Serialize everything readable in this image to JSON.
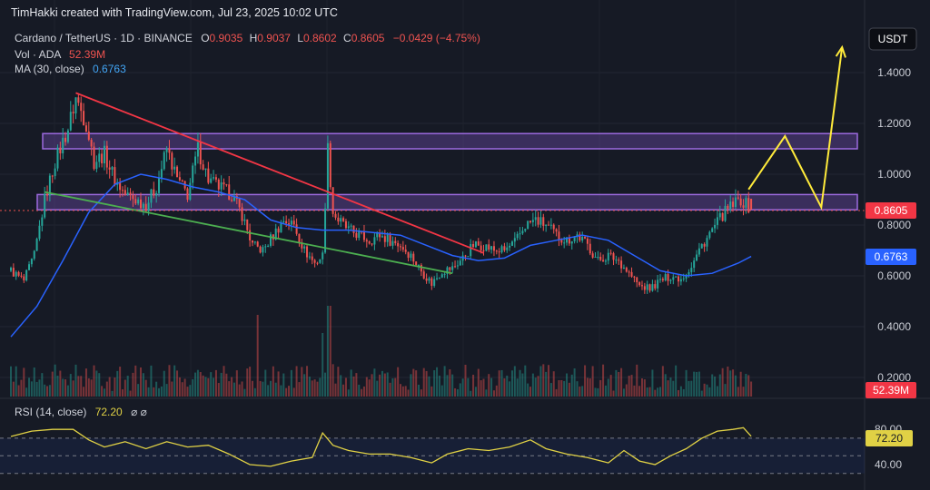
{
  "header": {
    "credit": "TimHakki created with TradingView.com, Jul 23, 2025 10:02 UTC"
  },
  "legend": {
    "symbol": "Cardano / TetherUS · 1D · BINANCE",
    "ohlc": [
      {
        "key": "O",
        "value": "0.9035"
      },
      {
        "key": "H",
        "value": "0.9037"
      },
      {
        "key": "L",
        "value": "0.8602"
      },
      {
        "key": "C",
        "value": "0.8605"
      }
    ],
    "change": "−0.0429 (−4.75%)",
    "vol_label": "Vol · ADA",
    "vol_value": "52.39M",
    "ma_label": "MA (30, close)",
    "ma_value": "0.6763",
    "rsi_label": "RSI (14, close)",
    "rsi_value": "72.20",
    "rsi_icons": "⌀ ⌀"
  },
  "currency_button": "USDT",
  "badges": {
    "price": "0.8605",
    "ma": "0.6763",
    "volume": "52.39M",
    "rsi": "72.20"
  },
  "colors": {
    "background": "#161a25",
    "up": "#26a69a",
    "down": "#ef5350",
    "ma": "#2962ff",
    "resistance_fill": "#7e57c2",
    "trend_upper": "#f23645",
    "trend_lower": "#4caf50",
    "projection": "#ffeb3b",
    "rsi_line": "#e0d145"
  },
  "chart_data": [
    {
      "type": "candlestick",
      "symbol": "Cardano / TetherUS",
      "interval": "1D",
      "exchange": "BINANCE",
      "y_ticks": [
        0.2,
        0.4,
        0.6,
        0.8,
        1.0,
        1.2,
        1.4
      ],
      "y_tick_labels": [
        "0.2000",
        "0.4000",
        "0.6000",
        "0.8000",
        "1.0000",
        "1.2000",
        "1.4000"
      ],
      "ylim": [
        0.13,
        1.52
      ],
      "bar_count": 286,
      "last_bar": {
        "open": 0.9035,
        "high": 0.9037,
        "low": 0.8602,
        "close": 0.8605,
        "change": -0.0429,
        "change_pct": -4.75
      },
      "price_path": [
        [
          0,
          0.62
        ],
        [
          5,
          0.58
        ],
        [
          9,
          0.68
        ],
        [
          13,
          0.9
        ],
        [
          17,
          1.05
        ],
        [
          22,
          1.18
        ],
        [
          25,
          1.3
        ],
        [
          29,
          1.2
        ],
        [
          32,
          1.05
        ],
        [
          36,
          1.08
        ],
        [
          40,
          0.98
        ],
        [
          44,
          0.92
        ],
        [
          48,
          0.9
        ],
        [
          52,
          0.88
        ],
        [
          56,
          0.95
        ],
        [
          60,
          1.1
        ],
        [
          64,
          0.98
        ],
        [
          68,
          0.92
        ],
        [
          72,
          1.1
        ],
        [
          76,
          0.98
        ],
        [
          80,
          0.95
        ],
        [
          85,
          0.92
        ],
        [
          89,
          0.84
        ],
        [
          93,
          0.72
        ],
        [
          97,
          0.7
        ],
        [
          101,
          0.76
        ],
        [
          105,
          0.82
        ],
        [
          109,
          0.8
        ],
        [
          113,
          0.7
        ],
        [
          117,
          0.65
        ],
        [
          120,
          0.68
        ],
        [
          122,
          1.1
        ],
        [
          124,
          0.85
        ],
        [
          126,
          0.82
        ],
        [
          130,
          0.78
        ],
        [
          134,
          0.76
        ],
        [
          138,
          0.74
        ],
        [
          142,
          0.76
        ],
        [
          146,
          0.74
        ],
        [
          150,
          0.72
        ],
        [
          154,
          0.68
        ],
        [
          158,
          0.62
        ],
        [
          162,
          0.57
        ],
        [
          166,
          0.62
        ],
        [
          170,
          0.63
        ],
        [
          174,
          0.67
        ],
        [
          178,
          0.72
        ],
        [
          182,
          0.72
        ],
        [
          186,
          0.7
        ],
        [
          190,
          0.7
        ],
        [
          194,
          0.73
        ],
        [
          198,
          0.8
        ],
        [
          202,
          0.82
        ],
        [
          206,
          0.8
        ],
        [
          210,
          0.76
        ],
        [
          214,
          0.74
        ],
        [
          218,
          0.76
        ],
        [
          222,
          0.72
        ],
        [
          226,
          0.66
        ],
        [
          230,
          0.68
        ],
        [
          234,
          0.66
        ],
        [
          238,
          0.61
        ],
        [
          242,
          0.56
        ],
        [
          246,
          0.55
        ],
        [
          250,
          0.58
        ],
        [
          254,
          0.6
        ],
        [
          258,
          0.59
        ],
        [
          262,
          0.64
        ],
        [
          266,
          0.72
        ],
        [
          270,
          0.78
        ],
        [
          274,
          0.84
        ],
        [
          278,
          0.88
        ],
        [
          281,
          0.9
        ],
        [
          285,
          0.8605
        ]
      ],
      "ma_30_path": [
        [
          0,
          0.36
        ],
        [
          10,
          0.48
        ],
        [
          20,
          0.66
        ],
        [
          30,
          0.85
        ],
        [
          40,
          0.96
        ],
        [
          50,
          1.0
        ],
        [
          60,
          0.98
        ],
        [
          70,
          0.95
        ],
        [
          80,
          0.93
        ],
        [
          90,
          0.9
        ],
        [
          100,
          0.82
        ],
        [
          110,
          0.79
        ],
        [
          120,
          0.78
        ],
        [
          130,
          0.78
        ],
        [
          140,
          0.77
        ],
        [
          150,
          0.76
        ],
        [
          160,
          0.72
        ],
        [
          170,
          0.68
        ],
        [
          180,
          0.66
        ],
        [
          190,
          0.67
        ],
        [
          200,
          0.72
        ],
        [
          210,
          0.74
        ],
        [
          220,
          0.76
        ],
        [
          230,
          0.74
        ],
        [
          240,
          0.68
        ],
        [
          250,
          0.62
        ],
        [
          260,
          0.6
        ],
        [
          270,
          0.61
        ],
        [
          280,
          0.65
        ],
        [
          285,
          0.6763
        ]
      ],
      "volume_last": "52.39M",
      "annotations": {
        "resistance_zones": [
          {
            "from": 1.1,
            "to": 1.16
          },
          {
            "from": 0.86,
            "to": 0.92
          }
        ],
        "descending_trendline": [
          [
            25,
            1.32
          ],
          [
            182,
            0.69
          ]
        ],
        "lower_trendline": [
          [
            13,
            0.93
          ],
          [
            170,
            0.61
          ]
        ],
        "projection_path": [
          [
            284,
            0.94
          ],
          [
            298,
            1.15
          ],
          [
            312,
            0.87
          ],
          [
            320,
            1.5
          ]
        ]
      }
    },
    {
      "type": "line",
      "name": "RSI (14, close)",
      "y_tick_labels": [
        "40.00",
        "80.00"
      ],
      "ylim": [
        30,
        85
      ],
      "last_value": 72.2,
      "bands": [
        30,
        50,
        70
      ],
      "values_path": [
        [
          0,
          72
        ],
        [
          8,
          78
        ],
        [
          16,
          80
        ],
        [
          24,
          80
        ],
        [
          30,
          68
        ],
        [
          36,
          60
        ],
        [
          44,
          66
        ],
        [
          52,
          58
        ],
        [
          60,
          66
        ],
        [
          68,
          60
        ],
        [
          76,
          62
        ],
        [
          84,
          52
        ],
        [
          92,
          40
        ],
        [
          100,
          38
        ],
        [
          108,
          44
        ],
        [
          116,
          48
        ],
        [
          120,
          76
        ],
        [
          124,
          62
        ],
        [
          130,
          56
        ],
        [
          138,
          52
        ],
        [
          146,
          52
        ],
        [
          154,
          48
        ],
        [
          162,
          42
        ],
        [
          168,
          52
        ],
        [
          176,
          58
        ],
        [
          184,
          56
        ],
        [
          192,
          60
        ],
        [
          200,
          68
        ],
        [
          206,
          58
        ],
        [
          214,
          52
        ],
        [
          222,
          48
        ],
        [
          230,
          42
        ],
        [
          236,
          56
        ],
        [
          242,
          44
        ],
        [
          248,
          40
        ],
        [
          254,
          50
        ],
        [
          260,
          58
        ],
        [
          266,
          70
        ],
        [
          272,
          78
        ],
        [
          278,
          80
        ],
        [
          282,
          82
        ],
        [
          285,
          72.2
        ]
      ]
    }
  ]
}
